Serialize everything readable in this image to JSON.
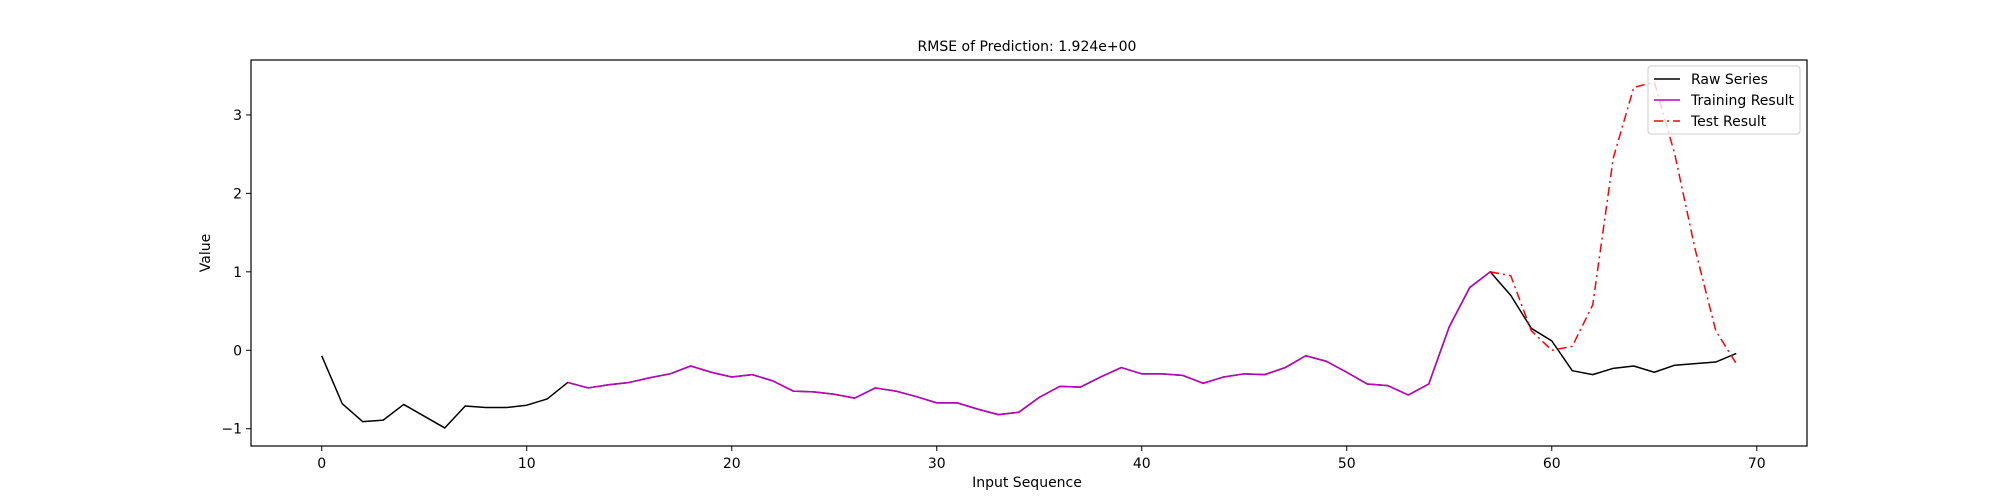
{
  "chart_data": {
    "type": "line",
    "title": "RMSE of Prediction: 1.924e+00",
    "xlabel": "Input Sequence",
    "ylabel": "Value",
    "xlim": [
      -3.45,
      72.45
    ],
    "ylim": [
      -1.22,
      3.7
    ],
    "xticks": [
      0,
      10,
      20,
      30,
      40,
      50,
      60,
      70
    ],
    "yticks": [
      -1,
      0,
      1,
      2,
      3
    ],
    "grid": false,
    "legend_position": "top-right",
    "series": [
      {
        "name": "Raw Series",
        "color": "#000000",
        "style": "solid",
        "x": [
          0,
          1,
          2,
          3,
          4,
          5,
          6,
          7,
          8,
          9,
          10,
          11,
          12,
          13,
          14,
          15,
          16,
          17,
          18,
          19,
          20,
          21,
          22,
          23,
          24,
          25,
          26,
          27,
          28,
          29,
          30,
          31,
          32,
          33,
          34,
          35,
          36,
          37,
          38,
          39,
          40,
          41,
          42,
          43,
          44,
          45,
          46,
          47,
          48,
          49,
          50,
          51,
          52,
          53,
          54,
          55,
          56,
          57,
          58,
          59,
          60,
          61,
          62,
          63,
          64,
          65,
          66,
          67,
          68,
          69
        ],
        "values": [
          -0.07,
          -0.68,
          -0.91,
          -0.89,
          -0.69,
          -0.84,
          -0.99,
          -0.71,
          -0.73,
          -0.73,
          -0.7,
          -0.62,
          -0.41,
          -0.48,
          -0.44,
          -0.41,
          -0.35,
          -0.3,
          -0.2,
          -0.28,
          -0.34,
          -0.31,
          -0.39,
          -0.52,
          -0.53,
          -0.56,
          -0.61,
          -0.48,
          -0.52,
          -0.59,
          -0.67,
          -0.67,
          -0.75,
          -0.82,
          -0.79,
          -0.6,
          -0.46,
          -0.47,
          -0.34,
          -0.22,
          -0.3,
          -0.3,
          -0.32,
          -0.42,
          -0.34,
          -0.3,
          -0.31,
          -0.22,
          -0.07,
          -0.14,
          -0.28,
          -0.43,
          -0.45,
          -0.57,
          -0.43,
          0.3,
          0.8,
          1.0,
          0.7,
          0.28,
          0.12,
          -0.26,
          -0.31,
          -0.23,
          -0.2,
          -0.28,
          -0.19,
          -0.17,
          -0.15,
          -0.04
        ]
      },
      {
        "name": "Training Result",
        "color": "#bf00bf",
        "style": "solid",
        "x": [
          12,
          13,
          14,
          15,
          16,
          17,
          18,
          19,
          20,
          21,
          22,
          23,
          24,
          25,
          26,
          27,
          28,
          29,
          30,
          31,
          32,
          33,
          34,
          35,
          36,
          37,
          38,
          39,
          40,
          41,
          42,
          43,
          44,
          45,
          46,
          47,
          48,
          49,
          50,
          51,
          52,
          53,
          54,
          55,
          56,
          57
        ],
        "values": [
          -0.41,
          -0.48,
          -0.44,
          -0.41,
          -0.35,
          -0.3,
          -0.2,
          -0.28,
          -0.34,
          -0.31,
          -0.39,
          -0.52,
          -0.53,
          -0.56,
          -0.61,
          -0.48,
          -0.52,
          -0.59,
          -0.67,
          -0.67,
          -0.75,
          -0.82,
          -0.79,
          -0.6,
          -0.46,
          -0.47,
          -0.34,
          -0.22,
          -0.3,
          -0.3,
          -0.32,
          -0.42,
          -0.34,
          -0.3,
          -0.31,
          -0.22,
          -0.07,
          -0.14,
          -0.28,
          -0.43,
          -0.45,
          -0.57,
          -0.43,
          0.3,
          0.8,
          1.0
        ]
      },
      {
        "name": "Test Result",
        "color": "#ff0000",
        "style": "dashdot",
        "x": [
          57,
          58,
          59,
          60,
          61,
          62,
          63,
          64,
          65,
          66,
          67,
          68,
          69
        ],
        "values": [
          1.0,
          0.95,
          0.25,
          0.0,
          0.05,
          0.58,
          2.45,
          3.35,
          3.42,
          2.5,
          1.28,
          0.25,
          -0.17
        ]
      }
    ]
  }
}
